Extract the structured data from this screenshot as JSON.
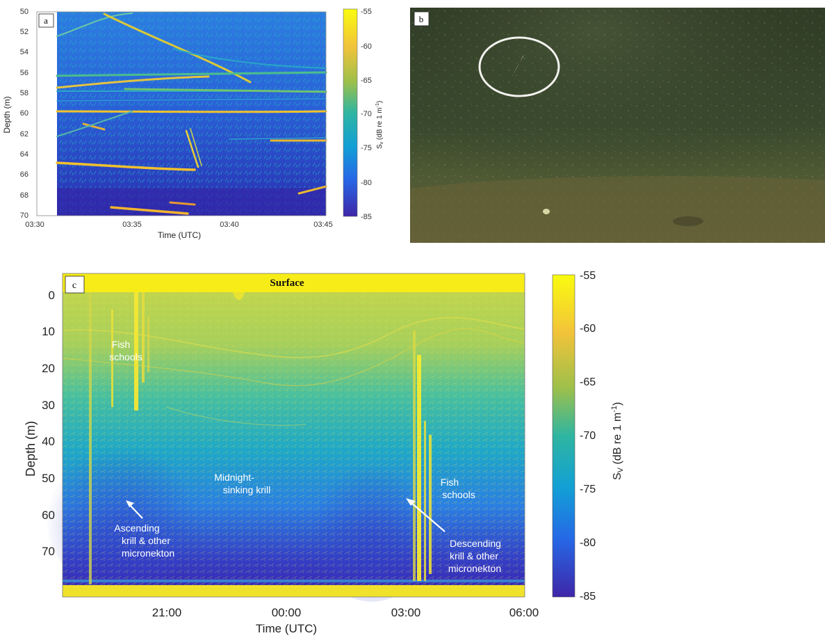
{
  "panel_a": {
    "tag": "a",
    "xlabel": "Time (UTC)",
    "ylabel": "Depth (m)",
    "x_ticks": [
      "03:30",
      "03:35",
      "03:40",
      "03:45"
    ],
    "y_ticks": [
      "50",
      "52",
      "54",
      "56",
      "58",
      "60",
      "62",
      "64",
      "66",
      "68",
      "70"
    ],
    "colorbar_ticks": [
      "-55",
      "-60",
      "-65",
      "-70",
      "-75",
      "-80",
      "-85"
    ],
    "colorbar_label_main": "S",
    "colorbar_label_sub": "v",
    "colorbar_label_rest": " (dB re 1 m",
    "colorbar_label_sup": "-1",
    "colorbar_label_end": ")"
  },
  "panel_b": {
    "tag": "b"
  },
  "panel_c": {
    "tag": "c",
    "surface_label": "Surface",
    "xlabel": "Time (UTC)",
    "ylabel": "Depth (m)",
    "x_ticks": [
      "21:00",
      "00:00",
      "03:00",
      "06:00"
    ],
    "y_ticks": [
      "0",
      "10",
      "20",
      "30",
      "40",
      "50",
      "60",
      "70"
    ],
    "colorbar_ticks": [
      "-55",
      "-60",
      "-65",
      "-70",
      "-75",
      "-80",
      "-85"
    ],
    "colorbar_label_main": "S",
    "colorbar_label_sub": "V",
    "colorbar_label_rest": " (dB re 1 m",
    "colorbar_label_sup": "-1",
    "colorbar_label_end": ")",
    "annotations": {
      "fish_schools_1_l1": "Fish",
      "fish_schools_1_l2": "schools",
      "midnight_l1": "Midnight-",
      "midnight_l2": "sinking krill",
      "fish_schools_2_l1": "Fish",
      "fish_schools_2_l2": "schools",
      "ascending_l1": "Ascending",
      "ascending_l2": "krill & other",
      "ascending_l3": "micronekton",
      "descending_l1": "Descending",
      "descending_l2": "krill & other",
      "descending_l3": "micronekton"
    }
  },
  "colors": {
    "viridis_top": "#f9e21e",
    "viridis_mid": "#21a685",
    "viridis_bottom": "#3a1ec0",
    "water": "#2f3b25"
  },
  "chart_data": [
    {
      "type": "heatmap",
      "panel": "a",
      "x_range": [
        "03:30",
        "03:45"
      ],
      "ylim": [
        50,
        70
      ],
      "y_inverted": true,
      "x_ticks": [
        "03:30",
        "03:35",
        "03:40",
        "03:45"
      ],
      "y_ticks": [
        50,
        52,
        54,
        56,
        58,
        60,
        62,
        64,
        66,
        68,
        70
      ],
      "colorbar_range": [
        -85,
        -55
      ],
      "colorbar_ticks": [
        -55,
        -60,
        -65,
        -70,
        -75,
        -80,
        -85
      ],
      "colormap": "parula"
    },
    {
      "type": "heatmap",
      "panel": "c",
      "x_ticks": [
        "21:00",
        "00:00",
        "03:00",
        "06:00"
      ],
      "x_range_end": "06:00",
      "ylim": [
        0,
        70
      ],
      "y_inverted": true,
      "y_ticks": [
        0,
        10,
        20,
        30,
        40,
        50,
        60,
        70
      ],
      "colorbar_range": [
        -85,
        -55
      ],
      "colorbar_ticks": [
        -55,
        -60,
        -65,
        -70,
        -75,
        -80,
        -85
      ],
      "colormap": "parula"
    }
  ]
}
